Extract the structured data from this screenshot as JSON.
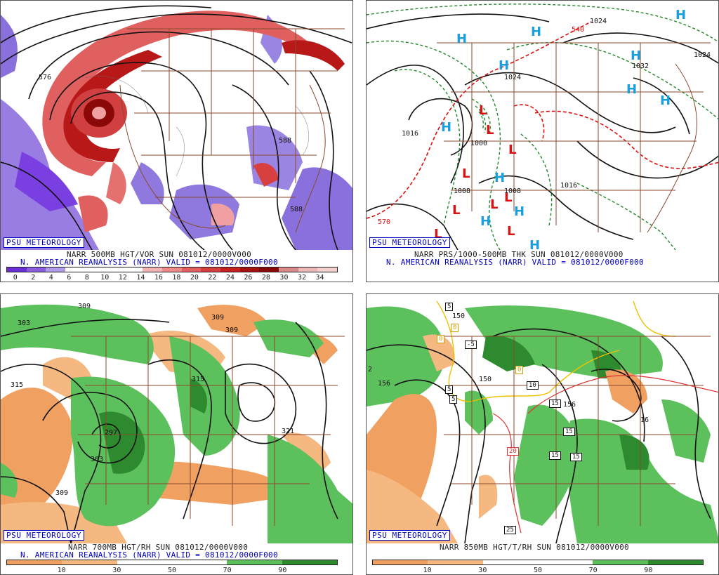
{
  "branding": "PSU METEOROLOGY",
  "panels": [
    {
      "id": "vort500",
      "title_line": "NARR 500MB HGT/VOR SUN 081012/0000V000",
      "valid_line": "N. AMERICAN REANALYSIS (NARR) VALID = 081012/0000F000",
      "contour_labels": [
        "576",
        "588",
        "588"
      ],
      "scale_labels": [
        "0",
        "2",
        "4",
        "6",
        "8",
        "10",
        "12",
        "14",
        "16",
        "18",
        "20",
        "22",
        "24",
        "26",
        "28",
        "30",
        "32",
        "34"
      ],
      "scale_colors": [
        "#6a2fd6",
        "#8a5ce0",
        "#b09bea",
        "#ffffff",
        "#ffffff",
        "#ffffff",
        "#ffffff",
        "#f4b3b3",
        "#ee8a8a",
        "#e46060",
        "#d83c3c",
        "#c81e1e",
        "#a80e0e",
        "#8a0606",
        "#d88a8a",
        "#ecb8b8",
        "#f4d0d0"
      ]
    },
    {
      "id": "mslp",
      "title_line": "NARR PRS/1000-500MB THK SUN 081012/0000V000",
      "valid_line": "N. AMERICAN REANALYSIS (NARR) VALID = 081012/0000F000",
      "contour_labels": [
        "1024",
        "1024",
        "1032",
        "1024",
        "1016",
        "1000",
        "1008",
        "1008",
        "1016",
        "570",
        "540"
      ],
      "high_symbol": "H",
      "low_symbol": "L"
    },
    {
      "id": "rh700",
      "title_line": "NARR 700MB HGT/RH SUN 081012/0000V000",
      "valid_line": "N. AMERICAN REANALYSIS (NARR) VALID = 081012/0000F000",
      "contour_labels": [
        "309",
        "303",
        "309",
        "309",
        "315",
        "315",
        "297",
        "303",
        "309",
        "321"
      ],
      "scale_labels": [
        "10",
        "30",
        "50",
        "70",
        "90"
      ],
      "scale_colors": [
        "#f0a060",
        "#f4b880",
        "#ffffff",
        "#ffffff",
        "#5cc05c",
        "#2e8a2e"
      ]
    },
    {
      "id": "t850",
      "title_line": "NARR 850MB HGT/T/RH SUN 081012/0000V000",
      "contour_labels": [
        "150",
        "156",
        "150",
        "156",
        "2",
        "16"
      ],
      "temp_boxes": [
        "5",
        "0",
        "0",
        "-5",
        "0",
        "5",
        "5",
        "10",
        "15",
        "15",
        "15",
        "15",
        "20",
        "25"
      ],
      "scale_labels": [
        "10",
        "30",
        "50",
        "70",
        "90"
      ],
      "scale_colors": [
        "#f0a060",
        "#f4b880",
        "#ffffff",
        "#ffffff",
        "#5cc05c",
        "#2e8a2e"
      ]
    }
  ]
}
